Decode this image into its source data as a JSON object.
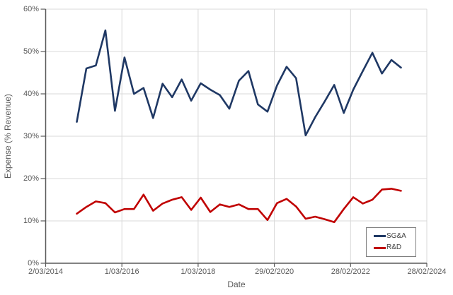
{
  "chart_data": {
    "type": "line",
    "title": "",
    "xlabel": "Date",
    "ylabel": "Expense (% Revenue)",
    "ylim": [
      0,
      60
    ],
    "grid": true,
    "legend_position": "bottom-right-inside",
    "y_tick_labels": [
      "0%",
      "10%",
      "20%",
      "30%",
      "40%",
      "50%",
      "60%"
    ],
    "x_tick_labels": [
      "2/03/2014",
      "1/03/2016",
      "1/03/2018",
      "29/02/2020",
      "28/02/2022",
      "28/02/2024"
    ],
    "x_dates": [
      "30/11/2014",
      "28/02/2015",
      "31/05/2015",
      "31/08/2015",
      "30/11/2015",
      "29/02/2016",
      "31/05/2016",
      "31/08/2016",
      "30/11/2016",
      "28/02/2017",
      "31/05/2017",
      "31/08/2017",
      "30/11/2017",
      "28/02/2018",
      "31/05/2018",
      "31/08/2018",
      "30/11/2018",
      "28/02/2019",
      "31/05/2019",
      "31/08/2019",
      "30/11/2019",
      "29/02/2020",
      "31/05/2020",
      "31/08/2020",
      "30/11/2020",
      "28/02/2021",
      "31/05/2021",
      "31/08/2021",
      "30/11/2021",
      "28/02/2022",
      "31/05/2022",
      "31/08/2022",
      "30/11/2022",
      "28/02/2023",
      "31/05/2023"
    ],
    "series": [
      {
        "name": "SG&A",
        "color": "#1F3864",
        "values": [
          33.4,
          46.0,
          46.7,
          55.0,
          36.0,
          48.6,
          40.0,
          41.4,
          34.3,
          42.4,
          39.2,
          43.4,
          38.4,
          42.5,
          41.0,
          39.7,
          36.5,
          43.1,
          45.4,
          37.5,
          35.8,
          42.0,
          46.4,
          43.7,
          30.2,
          34.5,
          38.2,
          42.1,
          35.5,
          41.0,
          45.4,
          49.7,
          44.8,
          48.0,
          46.2
        ]
      },
      {
        "name": "R&D",
        "color": "#C00000",
        "values": [
          11.7,
          13.3,
          14.6,
          14.2,
          12.0,
          12.8,
          12.8,
          16.2,
          12.4,
          14.1,
          15.0,
          15.6,
          12.6,
          15.5,
          12.1,
          13.9,
          13.3,
          13.9,
          12.8,
          12.8,
          10.2,
          14.2,
          15.2,
          13.4,
          10.5,
          11.0,
          10.4,
          9.7,
          12.8,
          15.6,
          14.1,
          15.0,
          17.4,
          17.6,
          17.1
        ]
      }
    ]
  },
  "colors": {
    "background": "#FFFFFF",
    "gridline": "#D9D9D9",
    "axis_line": "#595959",
    "tick_label": "#595959",
    "legend_border": "#7F7F7F",
    "legend_text": "#404040"
  }
}
